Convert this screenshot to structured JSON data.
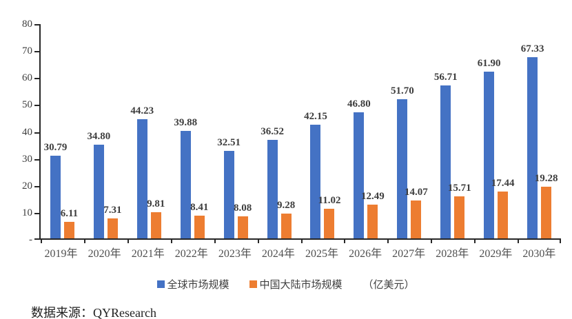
{
  "chart_data": {
    "type": "bar",
    "title": "",
    "categories": [
      "2019年",
      "2020年",
      "2021年",
      "2022年",
      "2023年",
      "2024年",
      "2025年",
      "2026年",
      "2027年",
      "2028年",
      "2029年",
      "2030年"
    ],
    "series": [
      {
        "name": "全球市场规模",
        "color": "#4472C4",
        "values": [
          30.79,
          34.8,
          44.23,
          39.88,
          32.51,
          36.52,
          42.15,
          46.8,
          51.7,
          56.71,
          61.9,
          67.33
        ]
      },
      {
        "name": "中国大陆市场规模",
        "color": "#ED7D31",
        "values": [
          6.11,
          7.31,
          9.81,
          8.41,
          8.08,
          9.28,
          11.02,
          12.49,
          14.07,
          15.71,
          17.44,
          19.28
        ]
      }
    ],
    "unit_label": "（亿美元）",
    "ylim": [
      0,
      80
    ],
    "y_tick_step": 10,
    "y_tick_labels": [
      "80",
      "70",
      "60",
      "50",
      "40",
      "30",
      "20",
      "10",
      "-"
    ],
    "value_label_decimals": 2,
    "grid": false,
    "legend_position": "bottom"
  },
  "source_text": "数据来源：QYResearch"
}
